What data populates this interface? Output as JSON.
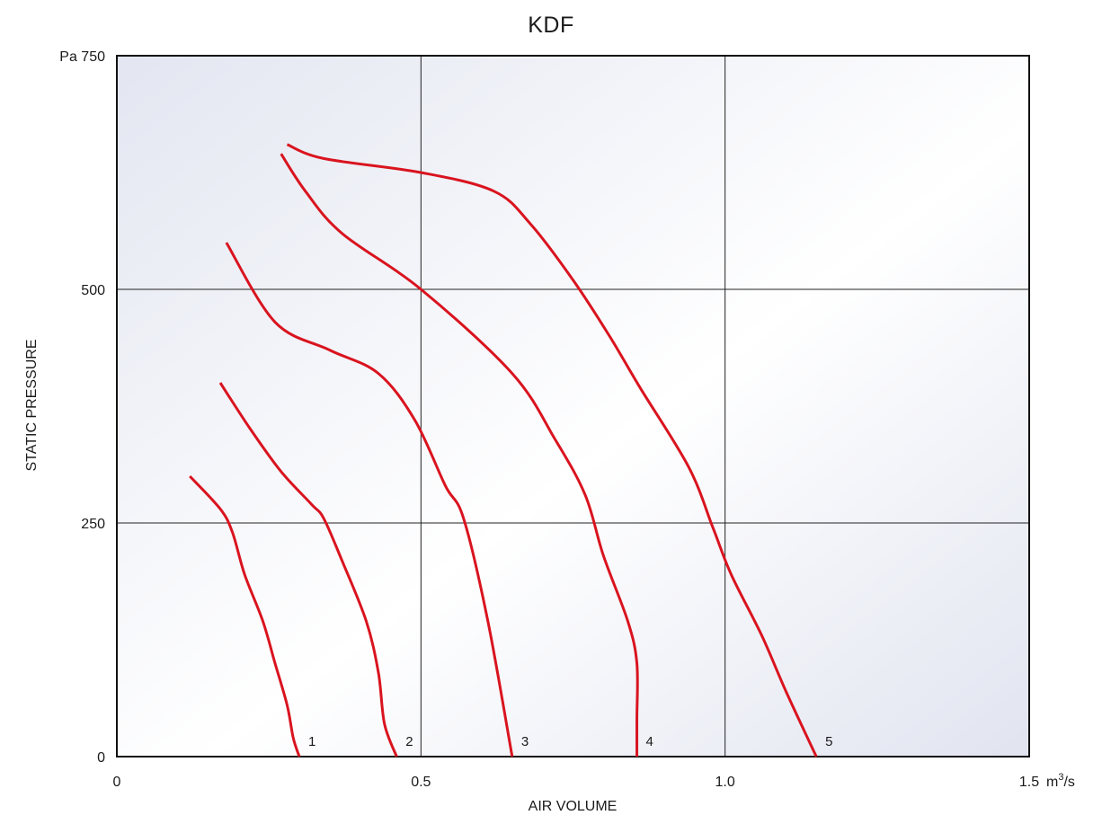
{
  "chart_data": {
    "type": "line",
    "title": "KDF",
    "xlabel": "AIR VOLUME",
    "ylabel": "STATIC PRESSURE",
    "x_unit": "m³/s",
    "y_unit": "Pa",
    "xlim": [
      0,
      1.5
    ],
    "ylim": [
      0,
      750
    ],
    "x_ticks": [
      0,
      0.5,
      1.0,
      1.5
    ],
    "x_tick_labels": [
      "0",
      "0.5",
      "1.0",
      "1.5"
    ],
    "y_ticks": [
      0,
      250,
      500,
      750
    ],
    "y_tick_labels": [
      "0",
      "250",
      "500",
      "Pa 750"
    ],
    "grid": true,
    "line_color": "#d9141f",
    "series": [
      {
        "name": "1",
        "points": [
          [
            0.12,
            300
          ],
          [
            0.17,
            265
          ],
          [
            0.19,
            240
          ],
          [
            0.21,
            195
          ],
          [
            0.24,
            145
          ],
          [
            0.26,
            100
          ],
          [
            0.28,
            55
          ],
          [
            0.29,
            20
          ],
          [
            0.3,
            0
          ]
        ]
      },
      {
        "name": "2",
        "points": [
          [
            0.17,
            400
          ],
          [
            0.22,
            350
          ],
          [
            0.27,
            305
          ],
          [
            0.32,
            270
          ],
          [
            0.34,
            255
          ],
          [
            0.37,
            210
          ],
          [
            0.41,
            145
          ],
          [
            0.43,
            90
          ],
          [
            0.44,
            35
          ],
          [
            0.46,
            0
          ]
        ]
      },
      {
        "name": "3",
        "points": [
          [
            0.18,
            550
          ],
          [
            0.26,
            465
          ],
          [
            0.35,
            435
          ],
          [
            0.43,
            410
          ],
          [
            0.49,
            360
          ],
          [
            0.54,
            290
          ],
          [
            0.57,
            255
          ],
          [
            0.61,
            145
          ],
          [
            0.65,
            0
          ]
        ]
      },
      {
        "name": "4",
        "points": [
          [
            0.27,
            645
          ],
          [
            0.31,
            605
          ],
          [
            0.37,
            560
          ],
          [
            0.5,
            500
          ],
          [
            0.65,
            410
          ],
          [
            0.72,
            340
          ],
          [
            0.77,
            280
          ],
          [
            0.8,
            215
          ],
          [
            0.84,
            145
          ],
          [
            0.855,
            100
          ],
          [
            0.855,
            40
          ],
          [
            0.855,
            0
          ]
        ]
      },
      {
        "name": "5",
        "points": [
          [
            0.28,
            655
          ],
          [
            0.34,
            640
          ],
          [
            0.5,
            625
          ],
          [
            0.62,
            605
          ],
          [
            0.68,
            570
          ],
          [
            0.75,
            510
          ],
          [
            0.81,
            450
          ],
          [
            0.86,
            395
          ],
          [
            0.94,
            310
          ],
          [
            0.98,
            245
          ],
          [
            1.01,
            195
          ],
          [
            1.06,
            130
          ],
          [
            1.1,
            70
          ],
          [
            1.15,
            0
          ]
        ]
      }
    ]
  }
}
